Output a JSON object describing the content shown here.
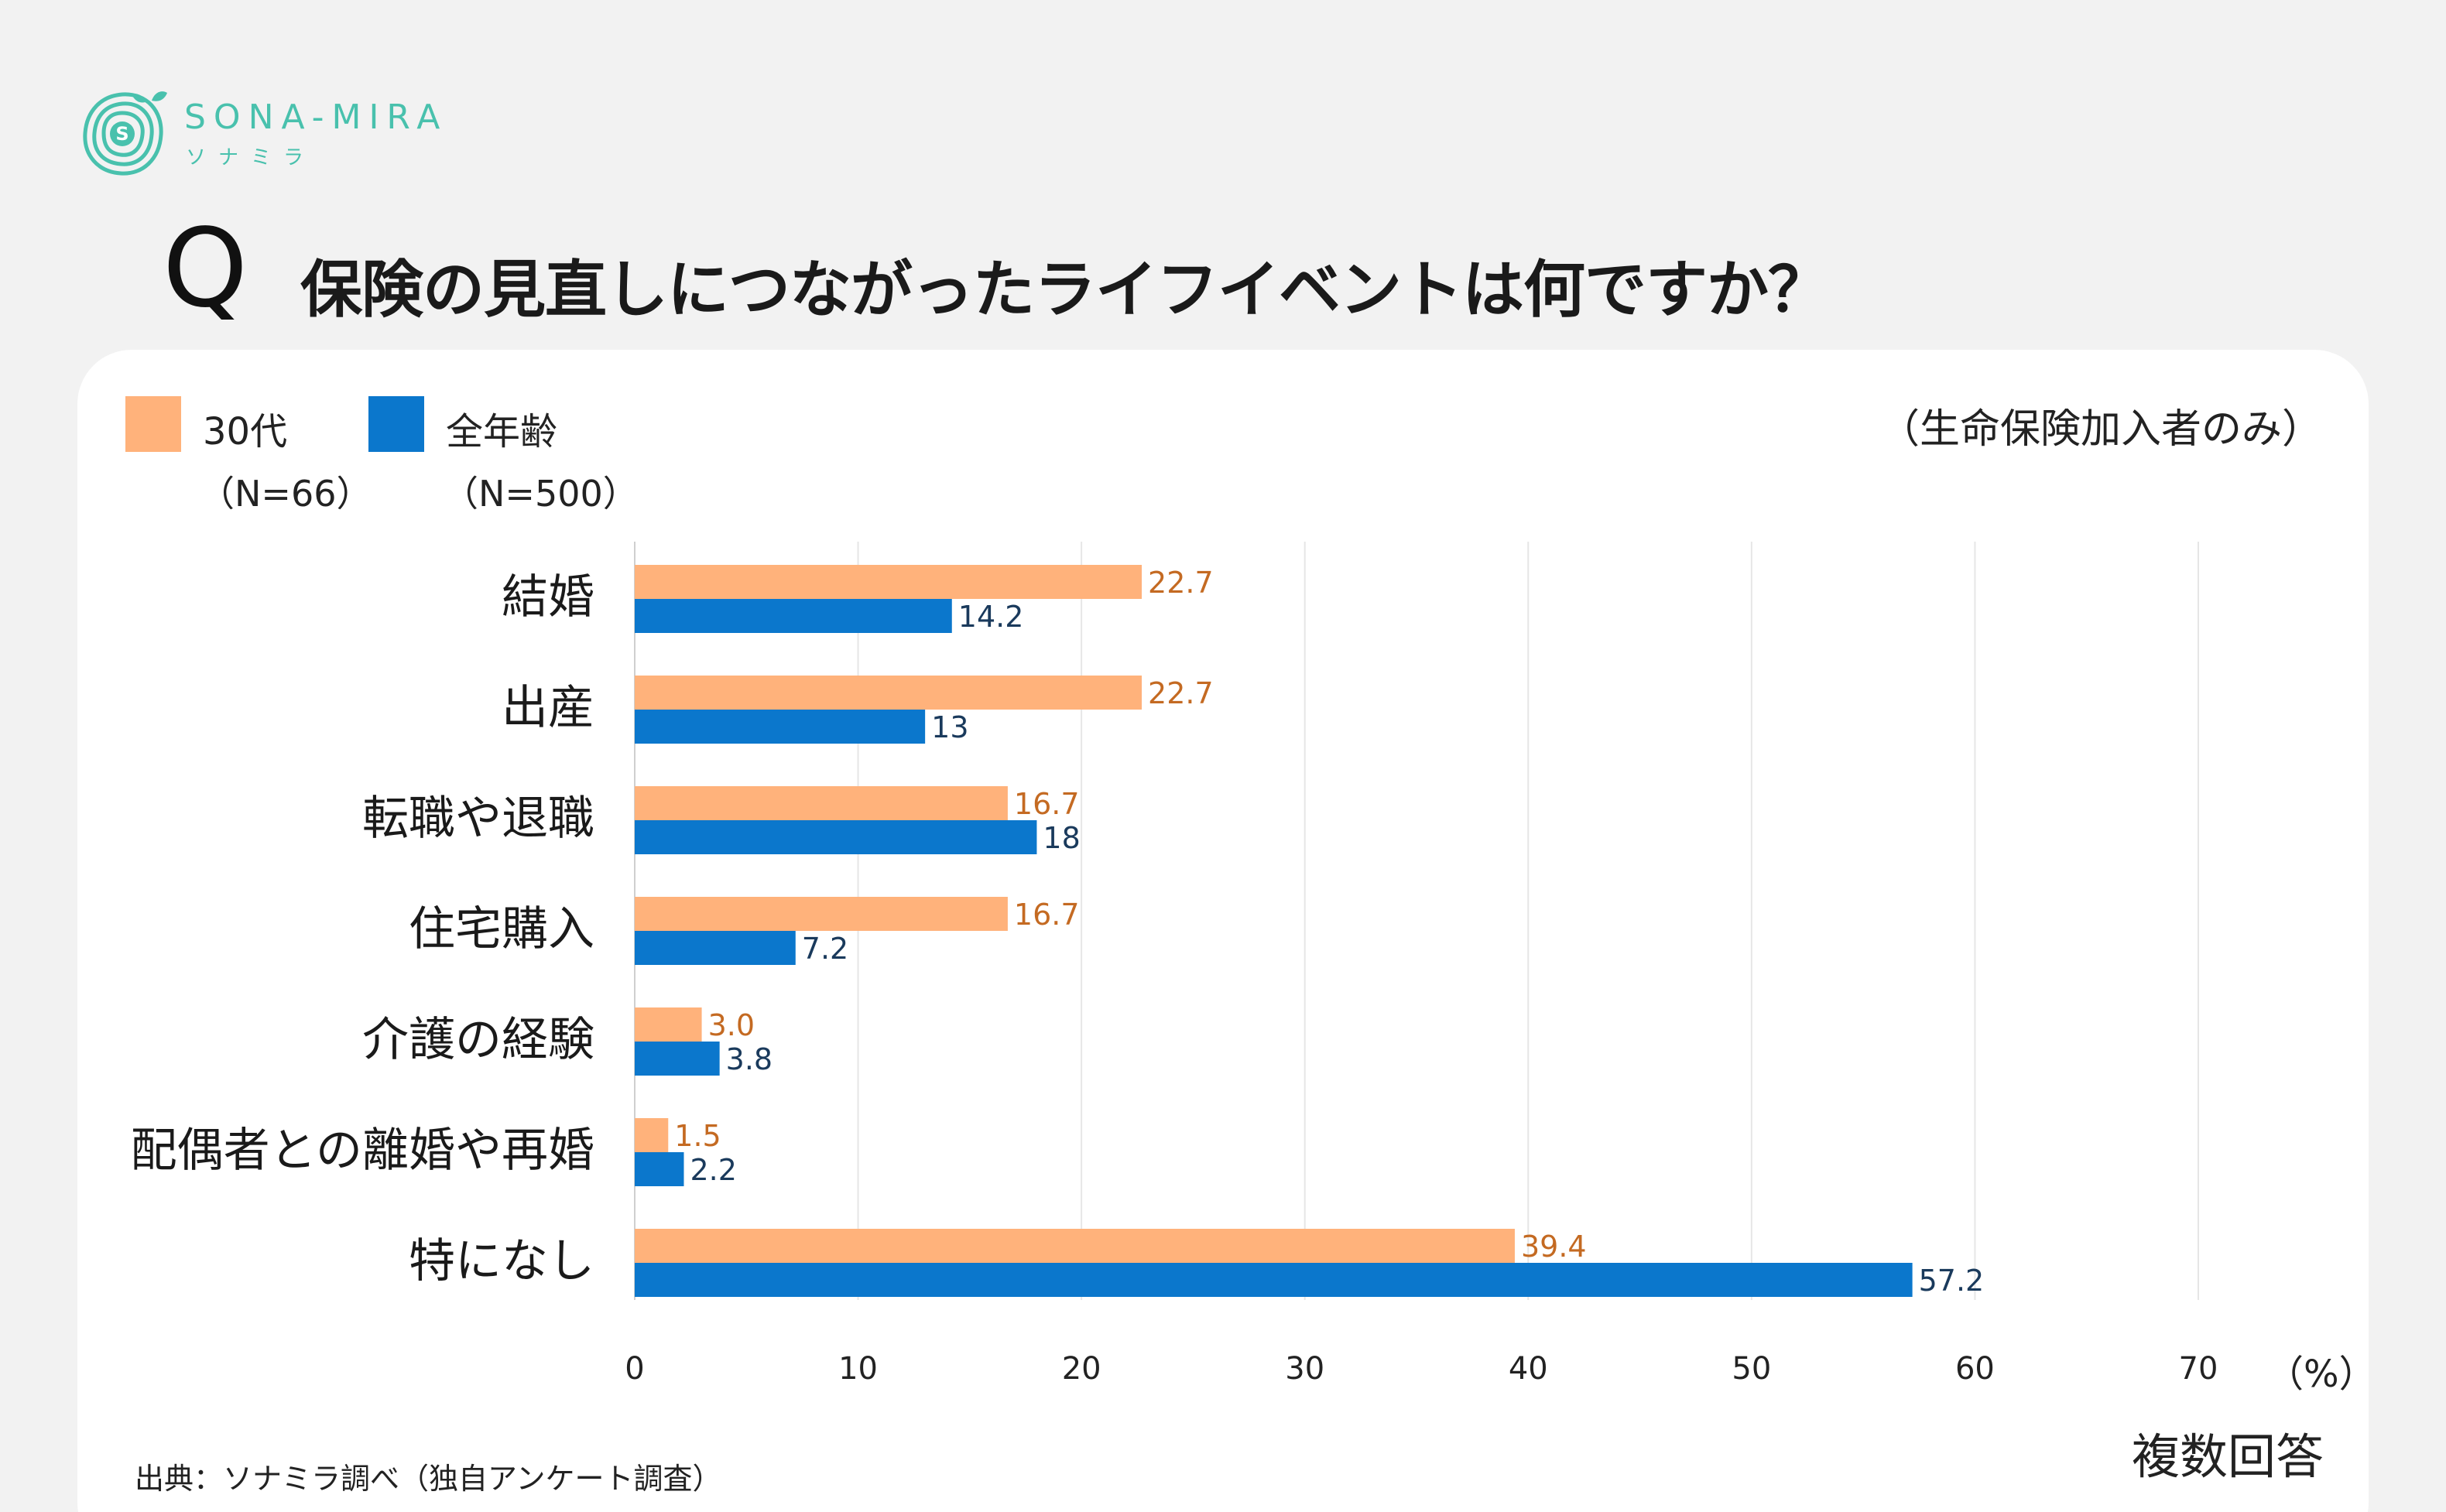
{
  "brand": {
    "name": "SONA-MIRA",
    "name_kana": "ソナミラ",
    "logo_letter": "S",
    "color": "#49c1ad"
  },
  "question": {
    "mark": "Q",
    "title": "保険の見直しにつながったライフイベントは何ですか？"
  },
  "legend": [
    {
      "name": "30代",
      "n": "（N=66）",
      "color": "#ffb27b"
    },
    {
      "name": "全年齢",
      "n": "（N=500）",
      "color": "#0b77cc"
    }
  ],
  "note": "（生命保険加入者のみ）",
  "unit": "（%）",
  "multi_answer": "複数回答",
  "source": "出典：ソナミラ調べ（独自アンケート調査）",
  "chart_data": {
    "type": "bar",
    "orientation": "horizontal",
    "categories": [
      "結婚",
      "出産",
      "転職や退職",
      "住宅購入",
      "介護の経験",
      "配偶者との離婚や再婚",
      "特になし"
    ],
    "series": [
      {
        "name": "30代",
        "values": [
          22.7,
          22.7,
          16.7,
          16.7,
          3.0,
          1.5,
          39.4
        ],
        "labels": [
          "22.7",
          "22.7",
          "16.7",
          "16.7",
          "3.0",
          "1.5",
          "39.4"
        ],
        "color": "#ffb27b",
        "label_color": "#c46a22"
      },
      {
        "name": "全年齢",
        "values": [
          14.2,
          13,
          18,
          7.2,
          3.8,
          2.2,
          57.2
        ],
        "labels": [
          "14.2",
          "13",
          "18",
          "7.2",
          "3.8",
          "2.2",
          "57.2"
        ],
        "color": "#0b77cc",
        "label_color": "#1a3a5c"
      }
    ],
    "xlim": [
      0,
      70
    ],
    "xticks": [
      "0",
      "10",
      "20",
      "30",
      "40",
      "50",
      "60",
      "70"
    ],
    "grid": true
  }
}
